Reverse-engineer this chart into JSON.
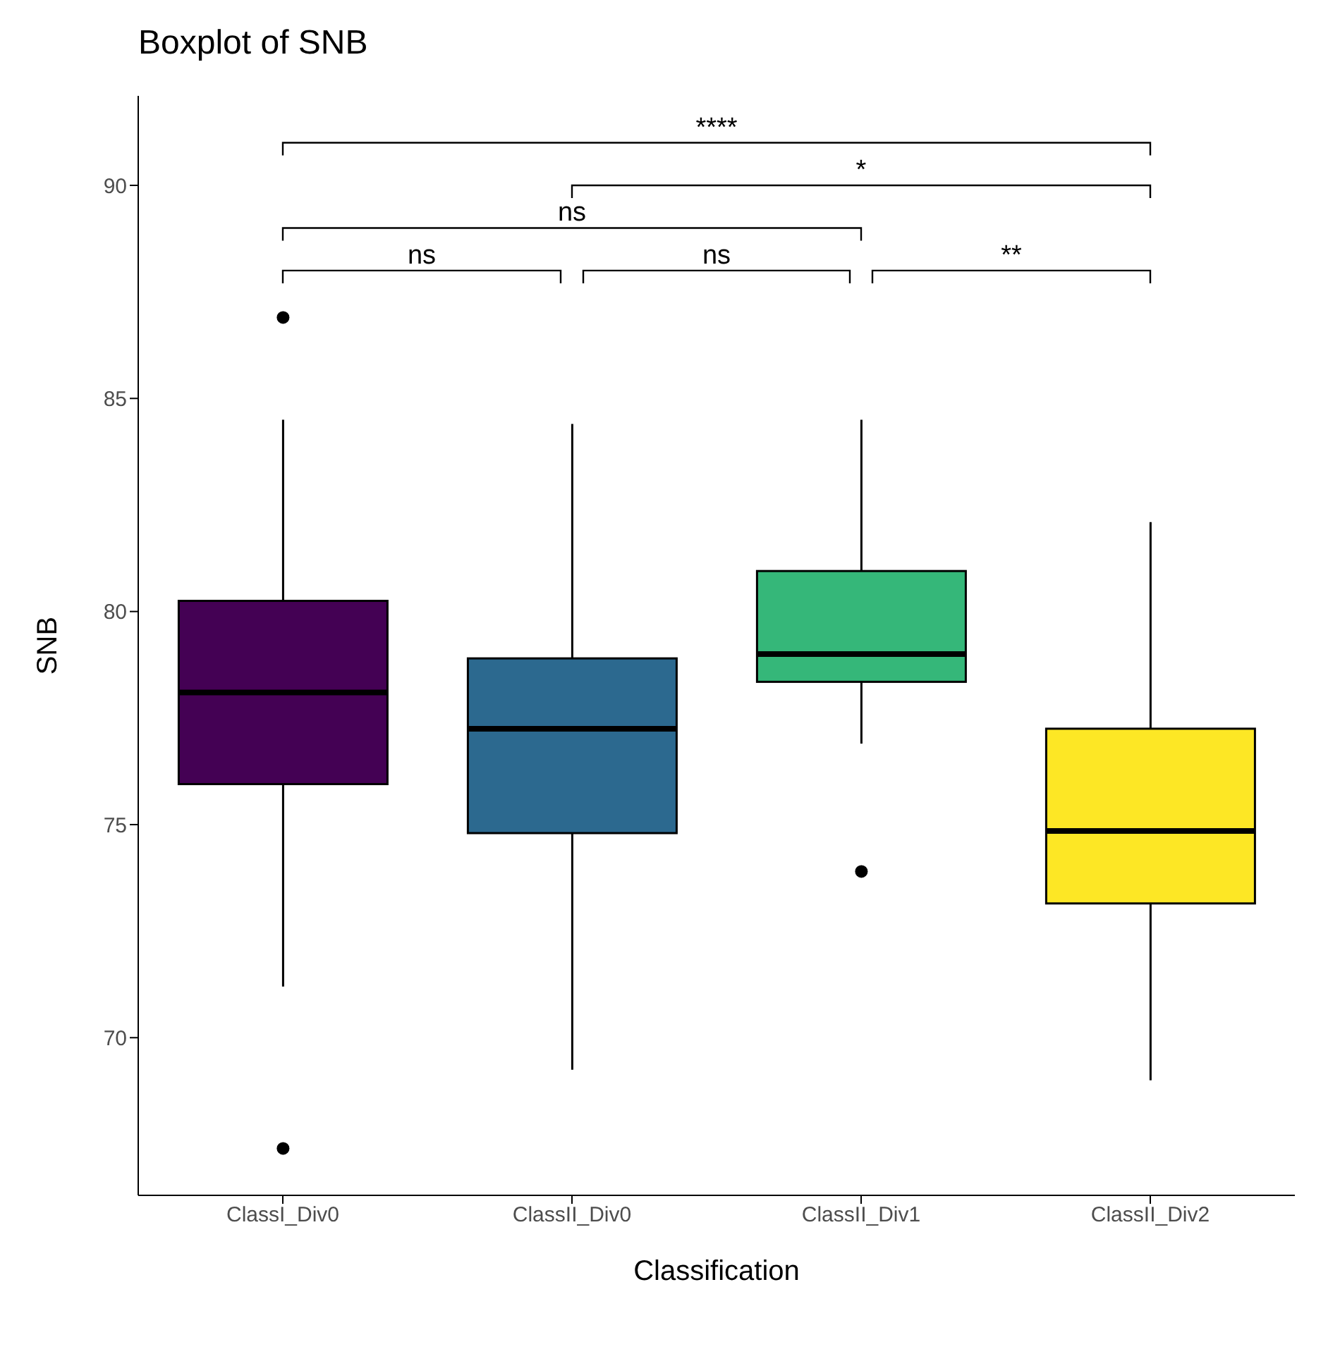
{
  "chart_data": {
    "type": "box",
    "title": "Boxplot of SNB",
    "xlabel": "Classification",
    "ylabel": "SNB",
    "categories": [
      "ClassI_Div0",
      "ClassII_Div0",
      "ClassII_Div1",
      "ClassII_Div2"
    ],
    "colors": [
      "#440154",
      "#2c698f",
      "#35b779",
      "#fde725"
    ],
    "boxes": [
      {
        "low": 71.2,
        "q1": 75.95,
        "median": 78.1,
        "q3": 80.25,
        "high": 84.5,
        "outliers": [
          86.9,
          67.4
        ]
      },
      {
        "low": 69.25,
        "q1": 74.8,
        "median": 77.25,
        "q3": 78.9,
        "high": 84.4
      },
      {
        "low": 76.9,
        "q1": 78.35,
        "median": 79.0,
        "q3": 80.95,
        "high": 84.5,
        "outliers": [
          73.9
        ]
      },
      {
        "low": 69.0,
        "q1": 73.15,
        "median": 74.85,
        "q3": 77.25,
        "high": 82.1
      }
    ],
    "ylim": [
      66.3,
      92.1
    ],
    "yticks": [
      70,
      75,
      80,
      85,
      90
    ],
    "annotations": [
      "****",
      "*",
      "ns",
      "ns",
      "ns",
      "**"
    ]
  }
}
